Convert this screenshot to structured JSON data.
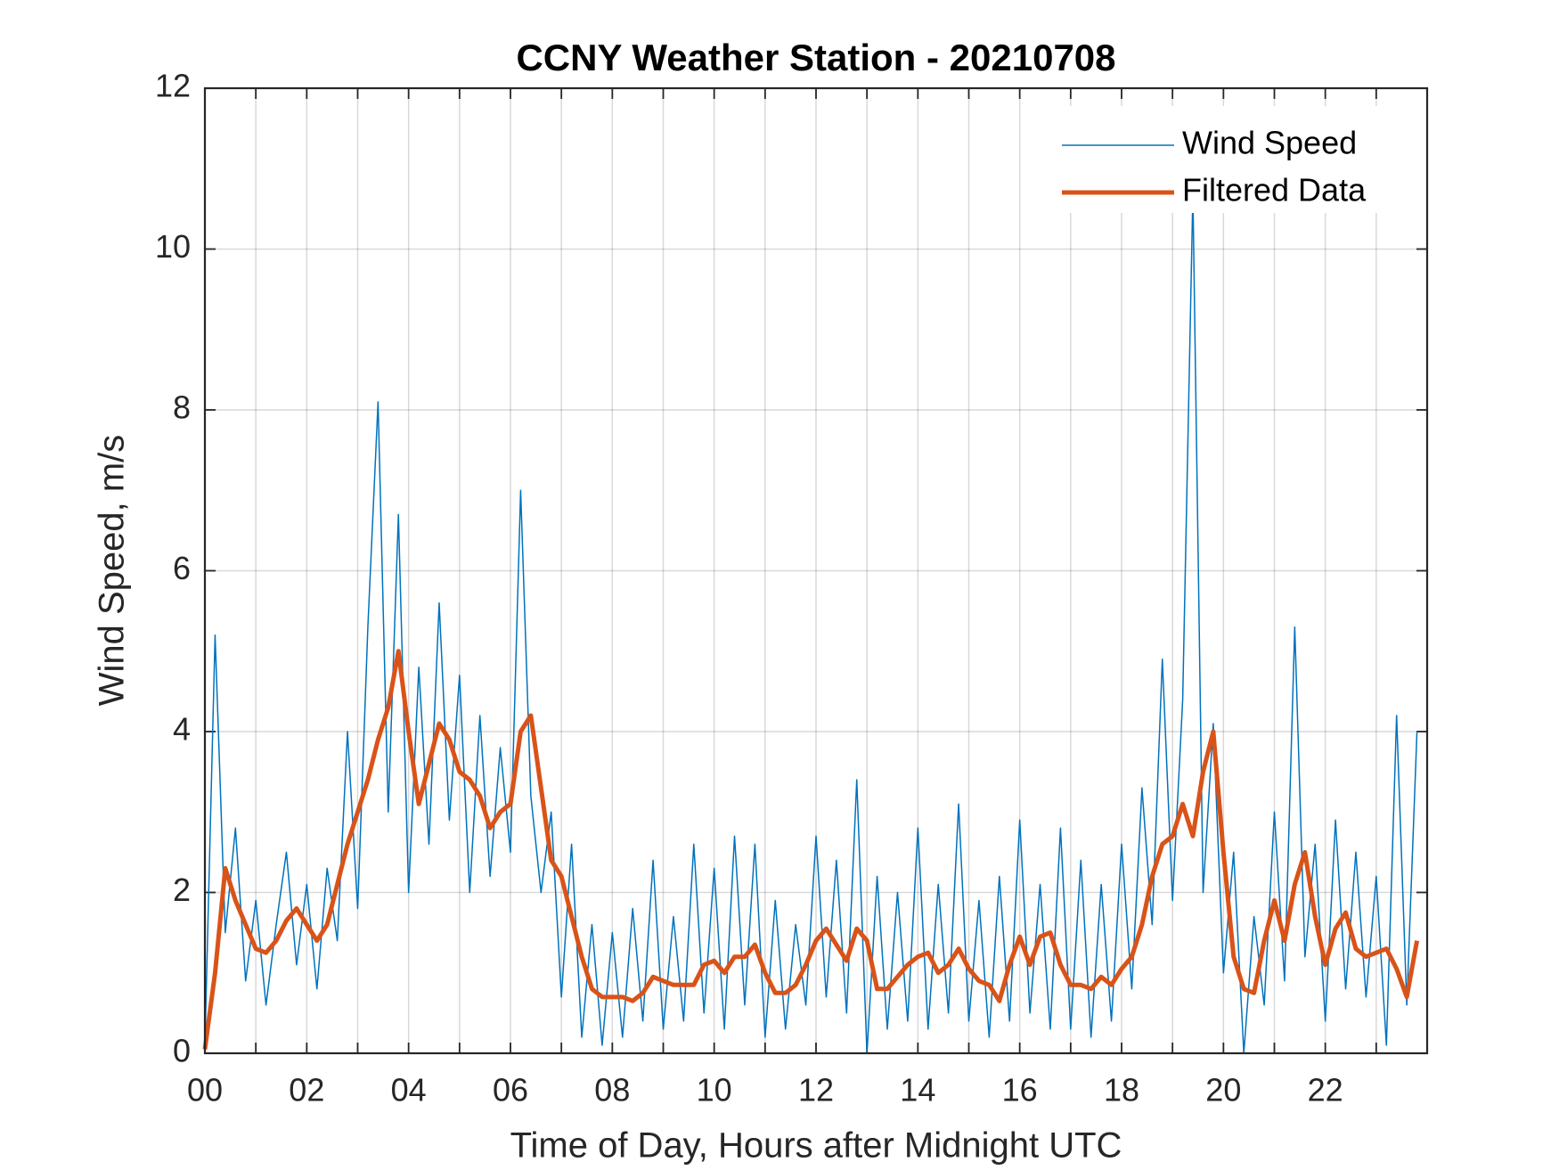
{
  "chart_data": {
    "type": "line",
    "title": "CCNY Weather Station - 20210708",
    "x_label": "Time of Day, Hours after Midnight UTC",
    "y_label": "Wind Speed, m/s",
    "xlim": [
      0,
      24
    ],
    "ylim": [
      0,
      12
    ],
    "xticks": [
      {
        "value": 0,
        "label": "00"
      },
      {
        "value": 2,
        "label": "02"
      },
      {
        "value": 4,
        "label": "04"
      },
      {
        "value": 6,
        "label": "06"
      },
      {
        "value": 8,
        "label": "08"
      },
      {
        "value": 10,
        "label": "10"
      },
      {
        "value": 12,
        "label": "12"
      },
      {
        "value": 14,
        "label": "14"
      },
      {
        "value": 16,
        "label": "16"
      },
      {
        "value": 18,
        "label": "18"
      },
      {
        "value": 20,
        "label": "20"
      },
      {
        "value": 22,
        "label": "22"
      }
    ],
    "x_minor_ticks": [
      1,
      3,
      5,
      7,
      9,
      11,
      13,
      15,
      17,
      19,
      21,
      23
    ],
    "yticks": [
      0,
      2,
      4,
      6,
      8,
      10,
      12
    ],
    "grid": true,
    "legend": "northeast",
    "x": [
      0,
      0.2,
      0.4,
      0.6,
      0.8,
      1,
      1.2,
      1.4,
      1.6,
      1.8,
      2,
      2.2,
      2.4,
      2.6,
      2.8,
      3,
      3.2,
      3.4,
      3.6,
      3.8,
      4,
      4.2,
      4.4,
      4.6,
      4.8,
      5,
      5.2,
      5.4,
      5.6,
      5.8,
      6,
      6.2,
      6.4,
      6.6,
      6.8,
      7,
      7.2,
      7.4,
      7.6,
      7.8,
      8,
      8.2,
      8.4,
      8.6,
      8.8,
      9,
      9.2,
      9.4,
      9.6,
      9.8,
      10,
      10.2,
      10.4,
      10.6,
      10.8,
      11,
      11.2,
      11.4,
      11.6,
      11.8,
      12,
      12.2,
      12.4,
      12.6,
      12.8,
      13,
      13.2,
      13.4,
      13.6,
      13.8,
      14,
      14.2,
      14.4,
      14.6,
      14.8,
      15,
      15.2,
      15.4,
      15.6,
      15.8,
      16,
      16.2,
      16.4,
      16.6,
      16.8,
      17,
      17.2,
      17.4,
      17.6,
      17.8,
      18,
      18.2,
      18.4,
      18.6,
      18.8,
      19,
      19.2,
      19.4,
      19.6,
      19.8,
      20,
      20.2,
      20.4,
      20.6,
      20.8,
      21,
      21.2,
      21.4,
      21.6,
      21.8,
      22,
      22.2,
      22.4,
      22.6,
      22.8,
      23,
      23.2,
      23.4,
      23.6,
      23.8
    ],
    "series": [
      {
        "name": "Wind Speed",
        "color": "#0072BD",
        "width": 1.5,
        "values": [
          0.1,
          5.2,
          1.5,
          2.8,
          0.9,
          1.9,
          0.6,
          1.6,
          2.5,
          1.1,
          2.1,
          0.8,
          2.3,
          1.4,
          4.0,
          1.8,
          5.3,
          8.1,
          3.0,
          6.7,
          2.0,
          4.8,
          2.6,
          5.6,
          2.9,
          4.7,
          2.0,
          4.2,
          2.2,
          3.8,
          2.5,
          7.0,
          3.2,
          2.0,
          3.0,
          0.7,
          2.6,
          0.2,
          1.6,
          0.1,
          1.5,
          0.2,
          1.8,
          0.4,
          2.4,
          0.3,
          1.7,
          0.4,
          2.6,
          0.5,
          2.3,
          0.3,
          2.7,
          0.6,
          2.6,
          0.2,
          1.9,
          0.3,
          1.6,
          0.6,
          2.7,
          0.7,
          2.4,
          0.5,
          3.4,
          0.0,
          2.2,
          0.3,
          2.0,
          0.4,
          2.8,
          0.3,
          2.1,
          0.5,
          3.1,
          0.4,
          1.9,
          0.2,
          2.2,
          0.4,
          2.9,
          0.5,
          2.1,
          0.3,
          2.8,
          0.3,
          2.4,
          0.2,
          2.1,
          0.4,
          2.6,
          0.8,
          3.3,
          1.6,
          4.9,
          1.9,
          4.4,
          10.7,
          2.0,
          4.1,
          1.0,
          2.5,
          0.0,
          1.7,
          0.6,
          3.0,
          0.9,
          5.3,
          1.2,
          2.6,
          0.4,
          2.9,
          0.8,
          2.5,
          0.7,
          2.2,
          0.1,
          4.2,
          0.6,
          4.0
        ]
      },
      {
        "name": "Filtered Data",
        "color": "#D95319",
        "width": 5,
        "values": [
          0.05,
          1.0,
          2.3,
          1.9,
          1.6,
          1.3,
          1.25,
          1.4,
          1.65,
          1.8,
          1.6,
          1.4,
          1.6,
          2.1,
          2.6,
          3.0,
          3.4,
          3.9,
          4.3,
          5.0,
          4.0,
          3.1,
          3.6,
          4.1,
          3.9,
          3.5,
          3.4,
          3.2,
          2.8,
          3.0,
          3.1,
          4.0,
          4.2,
          3.3,
          2.4,
          2.2,
          1.7,
          1.2,
          0.8,
          0.7,
          0.7,
          0.7,
          0.65,
          0.75,
          0.95,
          0.9,
          0.85,
          0.85,
          0.85,
          1.1,
          1.15,
          1.0,
          1.2,
          1.2,
          1.35,
          1.0,
          0.75,
          0.75,
          0.85,
          1.1,
          1.4,
          1.55,
          1.35,
          1.15,
          1.55,
          1.4,
          0.8,
          0.8,
          0.95,
          1.1,
          1.2,
          1.25,
          1.0,
          1.1,
          1.3,
          1.05,
          0.9,
          0.85,
          0.65,
          1.1,
          1.45,
          1.1,
          1.45,
          1.5,
          1.1,
          0.85,
          0.85,
          0.8,
          0.95,
          0.85,
          1.05,
          1.2,
          1.6,
          2.2,
          2.6,
          2.7,
          3.1,
          2.7,
          3.5,
          4.0,
          2.5,
          1.2,
          0.8,
          0.75,
          1.4,
          1.9,
          1.4,
          2.1,
          2.5,
          1.7,
          1.1,
          1.55,
          1.75,
          1.3,
          1.2,
          1.25,
          1.3,
          1.05,
          0.7,
          1.4
        ]
      }
    ]
  }
}
